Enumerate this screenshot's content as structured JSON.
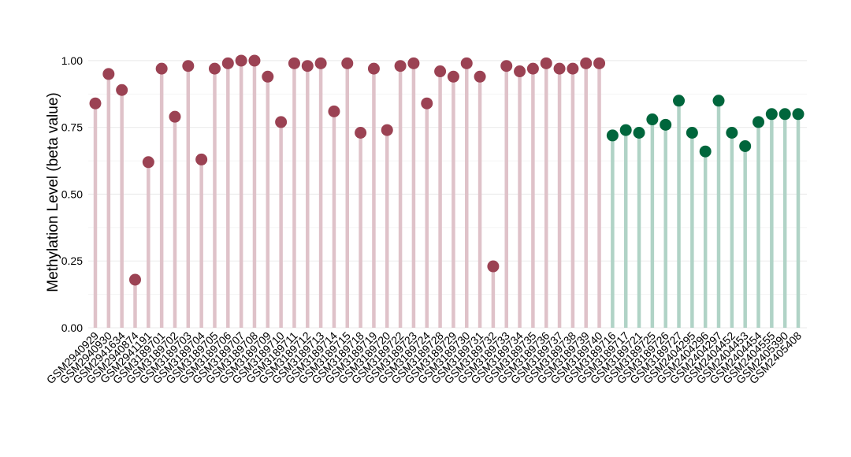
{
  "chart_data": {
    "type": "lollipop",
    "title": "",
    "xlabel": "",
    "ylabel": "Methylation Level (beta value)",
    "ylim": [
      0,
      1.05
    ],
    "yticks": [
      0.0,
      0.25,
      0.5,
      0.75,
      1.0
    ],
    "ytick_labels": [
      "0.00",
      "0.25",
      "0.50",
      "0.75",
      "1.00"
    ],
    "grid": true,
    "legend": "none",
    "categories": [
      "GSM2940929",
      "GSM2940930",
      "GSM2941634",
      "GSM2940874",
      "GSM2941191",
      "GSM3189701",
      "GSM3189702",
      "GSM3189703",
      "GSM3189704",
      "GSM3189705",
      "GSM3189706",
      "GSM3189707",
      "GSM3189708",
      "GSM3189709",
      "GSM3189710",
      "GSM3189711",
      "GSM3189712",
      "GSM3189713",
      "GSM3189714",
      "GSM3189715",
      "GSM3189718",
      "GSM3189719",
      "GSM3189720",
      "GSM3189722",
      "GSM3189723",
      "GSM3189724",
      "GSM3189728",
      "GSM3189729",
      "GSM3189730",
      "GSM3189731",
      "GSM3189732",
      "GSM3189733",
      "GSM3189734",
      "GSM3189735",
      "GSM3189736",
      "GSM3189737",
      "GSM3189738",
      "GSM3189739",
      "GSM3189740",
      "GSM3189716",
      "GSM3189717",
      "GSM3189721",
      "GSM3189725",
      "GSM3189726",
      "GSM3189727",
      "GSM2404295",
      "GSM2404296",
      "GSM2404297",
      "GSM2404452",
      "GSM2404453",
      "GSM2404454",
      "GSM2404555",
      "GSM2405390",
      "GSM2405408"
    ],
    "values": [
      0.84,
      0.95,
      0.89,
      0.18,
      0.62,
      0.97,
      0.79,
      0.98,
      0.63,
      0.97,
      0.99,
      1.0,
      1.0,
      0.94,
      0.77,
      0.99,
      0.98,
      0.99,
      0.81,
      0.99,
      0.73,
      0.97,
      0.74,
      0.98,
      0.99,
      0.84,
      0.96,
      0.94,
      0.99,
      0.94,
      0.23,
      0.98,
      0.96,
      0.97,
      0.99,
      0.97,
      0.97,
      0.99,
      0.99,
      0.72,
      0.74,
      0.73,
      0.78,
      0.76,
      0.85,
      0.73,
      0.66,
      0.85,
      0.73,
      0.68,
      0.77,
      0.8,
      0.8,
      0.8
    ],
    "groups": [
      "a",
      "a",
      "a",
      "a",
      "a",
      "a",
      "a",
      "a",
      "a",
      "a",
      "a",
      "a",
      "a",
      "a",
      "a",
      "a",
      "a",
      "a",
      "a",
      "a",
      "a",
      "a",
      "a",
      "a",
      "a",
      "a",
      "a",
      "a",
      "a",
      "a",
      "a",
      "a",
      "a",
      "a",
      "a",
      "a",
      "a",
      "a",
      "a",
      "b",
      "b",
      "b",
      "b",
      "b",
      "b",
      "b",
      "b",
      "b",
      "b",
      "b",
      "b",
      "b",
      "b",
      "b"
    ],
    "group_colors": {
      "a": {
        "point": "#9b4253",
        "stem": "#dfc2c9"
      },
      "b": {
        "point": "#00663c",
        "stem": "#b0d3c6"
      }
    }
  }
}
